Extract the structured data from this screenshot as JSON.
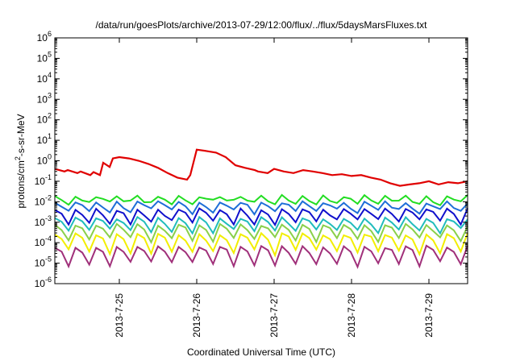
{
  "chart_data": {
    "type": "line",
    "title": "/data/run/goesPlots/archive/2013-07-29/12:00/flux/../flux/5daysMarsFluxes.txt",
    "xlabel": "Coordinated Universal Time (UTC)",
    "ylabel": {
      "prefix": "protons/cm",
      "sup": "2",
      "suffix": "-s-sr-MeV"
    },
    "y_scale": "log",
    "ylim": [
      1e-06,
      1000000.0
    ],
    "y_ticks": [
      {
        "base": "10",
        "exp": "-6",
        "value": 1e-06
      },
      {
        "base": "10",
        "exp": "-5",
        "value": 1e-05
      },
      {
        "base": "10",
        "exp": "-4",
        "value": 0.0001
      },
      {
        "base": "10",
        "exp": "-3",
        "value": 0.001
      },
      {
        "base": "10",
        "exp": "-2",
        "value": 0.01
      },
      {
        "base": "10",
        "exp": "-1",
        "value": 0.1
      },
      {
        "base": "10",
        "exp": "0",
        "value": 1
      },
      {
        "base": "10",
        "exp": "1",
        "value": 10
      },
      {
        "base": "10",
        "exp": "2",
        "value": 100
      },
      {
        "base": "10",
        "exp": "3",
        "value": 1000
      },
      {
        "base": "10",
        "exp": "4",
        "value": 10000
      },
      {
        "base": "10",
        "exp": "5",
        "value": 100000
      },
      {
        "base": "10",
        "exp": "6",
        "value": 1000000
      }
    ],
    "x_range": [
      "2013-07-24T04:00",
      "2013-07-29T12:00"
    ],
    "x_ticks": [
      "2013-7-25",
      "2013-7-26",
      "2013-7-27",
      "2013-7-28",
      "2013-7-29"
    ],
    "x_tick_dates": [
      "2013-07-25T00:00",
      "2013-07-26T00:00",
      "2013-07-27T00:00",
      "2013-07-28T00:00",
      "2013-07-29T00:00"
    ],
    "grid": false,
    "legend": "none",
    "series": [
      {
        "color": "#e00000",
        "x": [
          "2013-07-24T04:00",
          "2013-07-24T07:00",
          "2013-07-24T08:00",
          "2013-07-24T11:00",
          "2013-07-24T12:00",
          "2013-07-24T15:00",
          "2013-07-24T16:00",
          "2013-07-24T18:00",
          "2013-07-24T19:00",
          "2013-07-24T21:00",
          "2013-07-24T22:00",
          "2013-07-25T00:00",
          "2013-07-25T03:00",
          "2013-07-25T06:00",
          "2013-07-25T09:00",
          "2013-07-25T12:00",
          "2013-07-25T15:00",
          "2013-07-25T18:00",
          "2013-07-25T21:00",
          "2013-07-25T22:00",
          "2013-07-26T00:00",
          "2013-07-26T03:00",
          "2013-07-26T06:00",
          "2013-07-26T09:00",
          "2013-07-26T12:00",
          "2013-07-26T15:00",
          "2013-07-26T18:00",
          "2013-07-26T19:00",
          "2013-07-26T22:00",
          "2013-07-27T00:00",
          "2013-07-27T03:00",
          "2013-07-27T06:00",
          "2013-07-27T09:00",
          "2013-07-27T12:00",
          "2013-07-27T15:00",
          "2013-07-27T18:00",
          "2013-07-27T21:00",
          "2013-07-28T00:00",
          "2013-07-28T03:00",
          "2013-07-28T06:00",
          "2013-07-28T09:00",
          "2013-07-28T12:00",
          "2013-07-28T15:00",
          "2013-07-28T18:00",
          "2013-07-28T21:00",
          "2013-07-29T00:00",
          "2013-07-29T03:00",
          "2013-07-29T06:00",
          "2013-07-29T09:00",
          "2013-07-29T12:00"
        ],
        "y": [
          0.4,
          0.3,
          0.35,
          0.25,
          0.3,
          0.2,
          0.28,
          0.2,
          0.8,
          0.5,
          1.3,
          1.5,
          1.3,
          1.0,
          0.7,
          0.45,
          0.25,
          0.15,
          0.12,
          0.2,
          3.5,
          3.0,
          2.5,
          1.5,
          0.6,
          0.45,
          0.35,
          0.3,
          0.25,
          0.4,
          0.3,
          0.25,
          0.35,
          0.3,
          0.25,
          0.2,
          0.22,
          0.18,
          0.2,
          0.15,
          0.12,
          0.08,
          0.06,
          0.07,
          0.08,
          0.1,
          0.07,
          0.09,
          0.08,
          0.1
        ]
      },
      {
        "color": "#22dd22",
        "base": 0.018,
        "min": 0.008
      },
      {
        "color": "#1e6ed8",
        "base": 0.009,
        "min": 0.003
      },
      {
        "color": "#1010cc",
        "base": 0.004,
        "min": 0.0009
      },
      {
        "color": "#20bcbc",
        "base": 0.0015,
        "min": 0.00035
      },
      {
        "color": "#8ad04a",
        "base": 0.0007,
        "min": 0.00012
      },
      {
        "color": "#f2ee00",
        "base": 0.00025,
        "min": 3e-05
      },
      {
        "color": "#a0307a",
        "base": 6e-05,
        "min": 8e-06
      }
    ]
  }
}
